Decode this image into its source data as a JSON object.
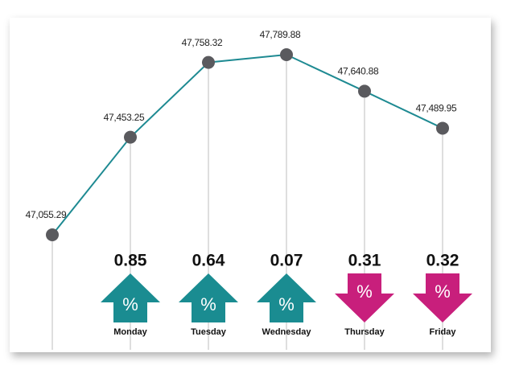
{
  "chart_data": {
    "type": "line",
    "categories": [
      null,
      "Monday",
      "Tuesday",
      "Wednesday",
      "Thursday",
      "Friday"
    ],
    "values": [
      47055.29,
      47453.25,
      47758.32,
      47789.88,
      47640.88,
      47489.95
    ],
    "value_labels": [
      "47,055.29",
      "47,453.25",
      "47,758.32",
      "47,789.88",
      "47,640.88",
      "47,489.95"
    ],
    "color": "#1e8a92",
    "marker_color": "#5a5a5e",
    "changes": [
      null,
      0.85,
      0.64,
      0.07,
      0.31,
      0.32
    ],
    "directions": [
      null,
      "up",
      "up",
      "up",
      "down",
      "down"
    ],
    "direction_colors": {
      "up": "#1a8c91",
      "down": "#c81f7c"
    },
    "symbol": "%"
  }
}
